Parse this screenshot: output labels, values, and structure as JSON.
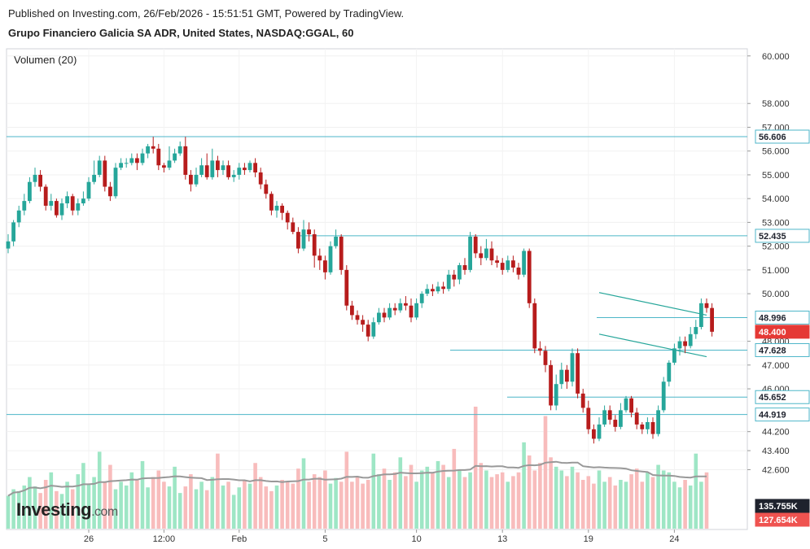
{
  "header": {
    "published": "Published on Investing.com, 26/Feb/2026 - 15:51:51 GMT, Powered by TradingView.",
    "instrument": "Grupo Financiero Galicia SA ADR, United States, NASDAQ:GGAL, 60"
  },
  "volume_label": "Volumen (20)",
  "logo": {
    "text": "Investing",
    "suffix": ".com"
  },
  "colors": {
    "up": "#26a69a",
    "down": "#b71c1c",
    "vol_up": "#9ee6c5",
    "vol_down": "#f8bcbc",
    "level_line": "#4db6c8",
    "channel": "#26a69a",
    "vol_ma": "#999999",
    "last_price": "#e53935",
    "vol_tag_up": "#1e222d",
    "vol_tag_down": "#ef5350"
  },
  "chart_data": {
    "type": "candlestick",
    "x_ticks": [
      "26",
      "12:00",
      "Feb",
      "5",
      "10",
      "13",
      "19",
      "24"
    ],
    "y_ticks": [
      "60.000",
      "58.000",
      "57.000",
      "56.000",
      "55.000",
      "54.000",
      "53.000",
      "52.000",
      "51.000",
      "50.000",
      "48.000",
      "47.000",
      "46.000",
      "44.200",
      "43.400",
      "42.600"
    ],
    "ylim": [
      42.0,
      60.3
    ],
    "bar_count": 131,
    "levels": [
      {
        "label": "56.606",
        "value": 56.606
      },
      {
        "label": "52.435",
        "value": 52.435
      },
      {
        "label": "48.996",
        "value": 48.996
      },
      {
        "label": "47.628",
        "value": 47.628
      },
      {
        "label": "45.652",
        "value": 45.652
      },
      {
        "label": "44.919",
        "value": 44.919
      }
    ],
    "last_price": {
      "label": "48.400",
      "value": 48.4
    },
    "volume_tags": [
      {
        "label": "135.755K"
      },
      {
        "label": "127.654K"
      }
    ],
    "channel": {
      "upper": [
        [
          110,
          50.05
        ],
        [
          130,
          49.1
        ]
      ],
      "lower": [
        [
          110,
          48.3
        ],
        [
          130,
          47.35
        ]
      ]
    },
    "candles": [
      [
        51.9,
        52.2,
        52.5,
        51.7
      ],
      [
        52.2,
        53.0,
        53.1,
        52.0
      ],
      [
        53.0,
        53.5,
        53.7,
        52.8
      ],
      [
        53.5,
        53.9,
        54.2,
        53.3
      ],
      [
        53.9,
        54.7,
        54.9,
        53.8
      ],
      [
        54.7,
        55.0,
        55.3,
        54.5
      ],
      [
        55.0,
        54.5,
        55.2,
        54.3
      ],
      [
        54.5,
        53.7,
        54.6,
        53.5
      ],
      [
        53.7,
        53.9,
        54.2,
        53.5
      ],
      [
        53.9,
        53.3,
        54.0,
        53.2
      ],
      [
        53.3,
        53.8,
        54.0,
        53.1
      ],
      [
        53.8,
        54.1,
        54.3,
        53.6
      ],
      [
        54.1,
        53.5,
        54.2,
        53.3
      ],
      [
        53.5,
        53.8,
        54.0,
        53.3
      ],
      [
        53.8,
        54.0,
        54.3,
        53.7
      ],
      [
        54.0,
        54.7,
        54.9,
        53.9
      ],
      [
        54.7,
        55.0,
        55.6,
        54.6
      ],
      [
        55.0,
        55.6,
        55.8,
        54.9
      ],
      [
        55.6,
        54.5,
        55.8,
        54.3
      ],
      [
        54.5,
        54.1,
        54.7,
        53.9
      ],
      [
        54.1,
        55.3,
        55.5,
        54.0
      ],
      [
        55.3,
        55.5,
        55.7,
        55.2
      ],
      [
        55.5,
        55.5,
        55.7,
        55.3
      ],
      [
        55.5,
        55.7,
        55.9,
        55.4
      ],
      [
        55.7,
        55.5,
        55.9,
        55.2
      ],
      [
        55.5,
        55.9,
        56.1,
        55.4
      ],
      [
        55.9,
        56.2,
        56.3,
        55.7
      ],
      [
        56.2,
        56.1,
        56.6,
        55.9
      ],
      [
        56.1,
        55.4,
        56.3,
        55.2
      ],
      [
        55.4,
        55.3,
        55.5,
        55.1
      ],
      [
        55.3,
        55.6,
        56.2,
        55.2
      ],
      [
        55.6,
        55.9,
        56.1,
        55.5
      ],
      [
        55.9,
        56.2,
        56.4,
        55.8
      ],
      [
        56.2,
        55.0,
        56.6,
        54.8
      ],
      [
        55.0,
        54.6,
        55.2,
        54.3
      ],
      [
        54.6,
        55.0,
        55.3,
        54.5
      ],
      [
        55.0,
        55.4,
        55.7,
        54.9
      ],
      [
        55.4,
        54.9,
        55.9,
        54.8
      ],
      [
        54.9,
        55.6,
        56.1,
        54.8
      ],
      [
        55.6,
        55.2,
        55.8,
        54.9
      ],
      [
        55.2,
        55.4,
        55.6,
        55.0
      ],
      [
        55.4,
        54.9,
        55.6,
        54.8
      ],
      [
        54.9,
        55.0,
        55.2,
        54.7
      ],
      [
        55.0,
        55.3,
        55.5,
        54.8
      ],
      [
        55.3,
        55.2,
        55.5,
        55.0
      ],
      [
        55.2,
        55.5,
        55.6,
        55.1
      ],
      [
        55.5,
        55.1,
        55.7,
        54.9
      ],
      [
        55.1,
        54.6,
        55.3,
        54.4
      ],
      [
        54.6,
        54.2,
        54.8,
        54.0
      ],
      [
        54.2,
        53.5,
        54.3,
        53.3
      ],
      [
        53.5,
        53.7,
        53.9,
        53.2
      ],
      [
        53.7,
        53.4,
        53.8,
        53.1
      ],
      [
        53.4,
        53.0,
        53.5,
        52.7
      ],
      [
        53.0,
        52.6,
        53.2,
        52.5
      ],
      [
        52.6,
        51.9,
        52.8,
        51.7
      ],
      [
        51.9,
        52.7,
        53.1,
        51.8
      ],
      [
        52.7,
        52.5,
        53.0,
        52.2
      ],
      [
        52.5,
        51.6,
        52.7,
        51.1
      ],
      [
        51.6,
        51.4,
        51.9,
        51.0
      ],
      [
        51.4,
        50.9,
        51.6,
        50.6
      ],
      [
        50.9,
        52.0,
        52.2,
        50.8
      ],
      [
        52.0,
        52.4,
        52.7,
        51.9
      ],
      [
        52.4,
        51.0,
        52.5,
        50.8
      ],
      [
        51.0,
        49.5,
        51.2,
        49.3
      ],
      [
        49.5,
        49.1,
        49.7,
        48.9
      ],
      [
        49.1,
        48.9,
        49.3,
        48.7
      ],
      [
        48.9,
        48.7,
        49.1,
        48.4
      ],
      [
        48.7,
        48.2,
        48.9,
        48.0
      ],
      [
        48.2,
        48.8,
        49.0,
        48.1
      ],
      [
        48.8,
        49.2,
        49.4,
        48.7
      ],
      [
        49.2,
        49.0,
        49.4,
        48.8
      ],
      [
        49.0,
        49.4,
        49.6,
        48.9
      ],
      [
        49.4,
        49.3,
        49.6,
        49.1
      ],
      [
        49.3,
        49.6,
        49.8,
        49.2
      ],
      [
        49.6,
        49.5,
        49.9,
        49.3
      ],
      [
        49.5,
        49.0,
        49.8,
        48.8
      ],
      [
        49.0,
        49.6,
        49.8,
        48.9
      ],
      [
        49.6,
        50.0,
        50.1,
        49.4
      ],
      [
        50.0,
        50.2,
        50.4,
        49.9
      ],
      [
        50.2,
        50.1,
        50.4,
        49.9
      ],
      [
        50.1,
        50.3,
        50.5,
        50.0
      ],
      [
        50.3,
        50.2,
        50.5,
        50.0
      ],
      [
        50.2,
        50.8,
        51.0,
        50.1
      ],
      [
        50.8,
        50.6,
        51.0,
        50.3
      ],
      [
        50.6,
        51.2,
        51.3,
        50.4
      ],
      [
        51.2,
        51.0,
        51.5,
        50.8
      ],
      [
        51.0,
        52.4,
        52.6,
        50.9
      ],
      [
        52.4,
        51.7,
        52.5,
        51.5
      ],
      [
        51.7,
        51.5,
        52.0,
        51.2
      ],
      [
        51.5,
        51.9,
        52.3,
        51.4
      ],
      [
        51.9,
        51.4,
        52.2,
        51.2
      ],
      [
        51.4,
        51.3,
        51.6,
        51.1
      ],
      [
        51.3,
        51.0,
        51.5,
        50.8
      ],
      [
        51.0,
        51.4,
        51.6,
        50.9
      ],
      [
        51.4,
        51.1,
        51.6,
        50.9
      ],
      [
        51.1,
        50.8,
        51.3,
        50.6
      ],
      [
        50.8,
        51.8,
        51.9,
        50.7
      ],
      [
        51.8,
        49.6,
        51.9,
        49.4
      ],
      [
        49.6,
        47.7,
        49.8,
        47.5
      ],
      [
        47.7,
        47.6,
        48.0,
        47.4
      ],
      [
        47.6,
        47.0,
        47.8,
        46.7
      ],
      [
        47.0,
        45.3,
        47.2,
        45.1
      ],
      [
        45.3,
        46.2,
        46.6,
        45.1
      ],
      [
        46.2,
        46.8,
        47.1,
        46.0
      ],
      [
        46.8,
        46.3,
        47.0,
        46.0
      ],
      [
        46.3,
        47.5,
        47.7,
        46.1
      ],
      [
        47.5,
        45.8,
        47.7,
        45.6
      ],
      [
        45.8,
        45.2,
        46.0,
        45.0
      ],
      [
        45.2,
        44.3,
        45.5,
        44.1
      ],
      [
        44.3,
        43.9,
        44.5,
        43.7
      ],
      [
        43.9,
        44.5,
        44.8,
        43.8
      ],
      [
        44.5,
        45.1,
        45.3,
        44.4
      ],
      [
        45.1,
        44.7,
        45.3,
        44.5
      ],
      [
        44.7,
        44.4,
        44.9,
        44.2
      ],
      [
        44.4,
        45.1,
        45.4,
        44.3
      ],
      [
        45.1,
        45.6,
        45.7,
        45.0
      ],
      [
        45.6,
        45.0,
        45.7,
        44.8
      ],
      [
        45.0,
        44.5,
        45.2,
        44.3
      ],
      [
        44.5,
        44.3,
        44.6,
        44.1
      ],
      [
        44.3,
        44.6,
        44.8,
        44.1
      ],
      [
        44.6,
        44.1,
        44.8,
        43.9
      ],
      [
        44.1,
        45.1,
        45.3,
        44.0
      ],
      [
        45.1,
        46.3,
        46.5,
        45.0
      ],
      [
        46.3,
        47.1,
        47.2,
        46.1
      ],
      [
        47.1,
        47.7,
        47.9,
        47.0
      ],
      [
        47.7,
        48.0,
        48.2,
        47.4
      ],
      [
        48.0,
        47.8,
        48.2,
        47.5
      ],
      [
        47.8,
        48.3,
        48.6,
        47.7
      ],
      [
        48.3,
        48.6,
        48.9,
        48.1
      ],
      [
        48.6,
        49.6,
        49.8,
        48.5
      ],
      [
        49.6,
        49.4,
        49.8,
        49.2
      ],
      [
        49.4,
        48.4,
        49.6,
        48.2
      ]
    ],
    "volumes": [
      0.35,
      0.42,
      0.4,
      0.46,
      0.55,
      0.45,
      0.38,
      0.52,
      0.6,
      0.4,
      0.37,
      0.5,
      0.42,
      0.58,
      0.7,
      0.47,
      0.55,
      0.82,
      0.5,
      0.68,
      0.42,
      0.5,
      0.46,
      0.6,
      0.52,
      0.72,
      0.44,
      0.55,
      0.62,
      0.5,
      0.45,
      0.66,
      0.38,
      0.45,
      0.58,
      0.42,
      0.5,
      0.41,
      0.55,
      0.8,
      0.46,
      0.5,
      0.36,
      0.44,
      0.52,
      0.48,
      0.7,
      0.55,
      0.45,
      0.4,
      0.46,
      0.52,
      0.5,
      0.48,
      0.64,
      0.75,
      0.5,
      0.58,
      0.55,
      0.62,
      0.48,
      0.54,
      0.5,
      0.82,
      0.5,
      0.56,
      0.48,
      0.52,
      0.8,
      0.58,
      0.64,
      0.52,
      0.6,
      0.76,
      0.56,
      0.68,
      0.5,
      0.62,
      0.66,
      0.6,
      0.72,
      0.68,
      0.55,
      0.85,
      0.62,
      0.55,
      0.6,
      1.3,
      0.7,
      0.62,
      0.55,
      0.58,
      0.6,
      0.5,
      0.56,
      0.6,
      0.92,
      0.78,
      0.62,
      0.7,
      1.2,
      0.76,
      0.66,
      0.62,
      0.56,
      0.66,
      0.6,
      0.52,
      0.56,
      0.48,
      0.62,
      0.5,
      0.55,
      0.46,
      0.52,
      0.5,
      0.58,
      0.64,
      0.5,
      0.6,
      0.55,
      0.68,
      0.62,
      0.6,
      0.5,
      0.44,
      0.52,
      0.46,
      0.8,
      0.5,
      0.6
    ]
  }
}
